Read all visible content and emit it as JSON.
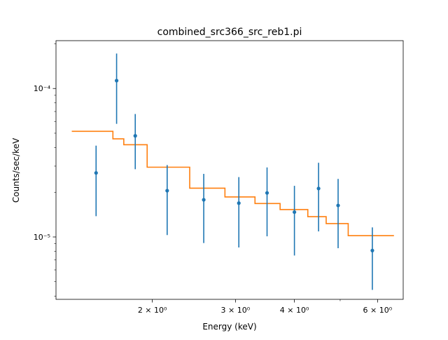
{
  "chart_data": {
    "type": "scatter",
    "title": "combined_src366_src_reb1.pi",
    "xlabel": "Energy (keV)",
    "ylabel": "Counts/sec/keV",
    "xscale": "log",
    "yscale": "log",
    "xlim": [
      1.25,
      6.8
    ],
    "ylim": [
      3.8e-06,
      0.00021
    ],
    "grid": false,
    "x_ticks": [
      {
        "value": 2,
        "label": "2 × 10⁰"
      },
      {
        "value": 3,
        "label": "3 × 10⁰"
      },
      {
        "value": 4,
        "label": "4 × 10⁰"
      },
      {
        "value": 6,
        "label": "6 × 10⁰"
      }
    ],
    "y_ticks": [
      {
        "value": 1e-05,
        "label": "10⁻⁵"
      },
      {
        "value": 0.0001,
        "label": "10⁻⁴"
      }
    ],
    "x_minor_ticks": [
      5
    ],
    "y_minor_ticks": [
      4e-06,
      5e-06,
      6e-06,
      7e-06,
      8e-06,
      9e-06,
      2e-05,
      3e-05,
      4e-05,
      5e-05,
      6e-05,
      7e-05,
      8e-05,
      9e-05,
      0.0002
    ],
    "data_series": {
      "color": "#1f77b4",
      "points": [
        {
          "x": 1.52,
          "y": 2.7e-05,
          "ylow": 1.38e-05,
          "yhigh": 4.12e-05
        },
        {
          "x": 1.68,
          "y": 0.000113,
          "ylow": 5.78e-05,
          "yhigh": 0.000172
        },
        {
          "x": 1.84,
          "y": 4.8e-05,
          "ylow": 2.86e-05,
          "yhigh": 6.73e-05
        },
        {
          "x": 2.15,
          "y": 2.05e-05,
          "ylow": 1.03e-05,
          "yhigh": 3.05e-05
        },
        {
          "x": 2.57,
          "y": 1.78e-05,
          "ylow": 9.1e-06,
          "yhigh": 2.66e-05
        },
        {
          "x": 3.05,
          "y": 1.69e-05,
          "ylow": 8.5e-06,
          "yhigh": 2.53e-05
        },
        {
          "x": 3.5,
          "y": 1.98e-05,
          "ylow": 1.01e-05,
          "yhigh": 2.94e-05
        },
        {
          "x": 4.0,
          "y": 1.47e-05,
          "ylow": 7.5e-06,
          "yhigh": 2.21e-05
        },
        {
          "x": 4.5,
          "y": 2.12e-05,
          "ylow": 1.09e-05,
          "yhigh": 3.16e-05
        },
        {
          "x": 4.95,
          "y": 1.63e-05,
          "ylow": 8.4e-06,
          "yhigh": 2.46e-05
        },
        {
          "x": 5.85,
          "y": 8.1e-06,
          "ylow": 4.4e-06,
          "yhigh": 1.16e-05
        }
      ]
    },
    "model_series": {
      "type": "step",
      "color": "#ff7f0e",
      "steps": [
        {
          "x0": 1.35,
          "x1": 1.65,
          "y": 5.15e-05
        },
        {
          "x0": 1.65,
          "x1": 1.74,
          "y": 4.58e-05
        },
        {
          "x0": 1.74,
          "x1": 1.95,
          "y": 4.18e-05
        },
        {
          "x0": 1.95,
          "x1": 2.4,
          "y": 2.95e-05
        },
        {
          "x0": 2.4,
          "x1": 2.85,
          "y": 2.13e-05
        },
        {
          "x0": 2.85,
          "x1": 3.3,
          "y": 1.86e-05
        },
        {
          "x0": 3.3,
          "x1": 3.73,
          "y": 1.68e-05
        },
        {
          "x0": 3.73,
          "x1": 4.27,
          "y": 1.53e-05
        },
        {
          "x0": 4.27,
          "x1": 4.67,
          "y": 1.37e-05
        },
        {
          "x0": 4.67,
          "x1": 5.2,
          "y": 1.23e-05
        },
        {
          "x0": 5.2,
          "x1": 6.5,
          "y": 1.02e-05
        }
      ]
    }
  }
}
